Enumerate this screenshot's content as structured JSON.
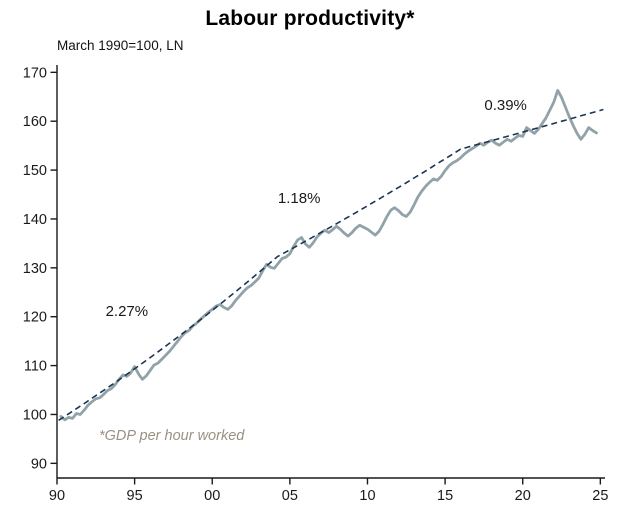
{
  "chart_data": {
    "type": "line",
    "title": "Labour productivity*",
    "subtitle": "March 1990=100, LN",
    "footnote": "*GDP per hour worked",
    "xlabel": "",
    "ylabel": "",
    "grid": false,
    "legend": false,
    "xlim": [
      1990,
      2025.3
    ],
    "ylim": [
      87,
      171.5
    ],
    "axis_color": "#1a1a1a",
    "x_ticks": [
      {
        "v": 1990,
        "label": "90"
      },
      {
        "v": 1995,
        "label": "95"
      },
      {
        "v": 2000,
        "label": "00"
      },
      {
        "v": 2005,
        "label": "05"
      },
      {
        "v": 2010,
        "label": "10"
      },
      {
        "v": 2015,
        "label": "15"
      },
      {
        "v": 2020,
        "label": "20"
      },
      {
        "v": 2025,
        "label": "25"
      }
    ],
    "y_ticks": [
      {
        "v": 90,
        "label": "90"
      },
      {
        "v": 100,
        "label": "100"
      },
      {
        "v": 110,
        "label": "110"
      },
      {
        "v": 120,
        "label": "120"
      },
      {
        "v": 130,
        "label": "130"
      },
      {
        "v": 140,
        "label": "140"
      },
      {
        "v": 150,
        "label": "150"
      },
      {
        "v": 160,
        "label": "160"
      },
      {
        "v": 170,
        "label": "170"
      }
    ],
    "series": [
      {
        "name": "Labour productivity (GDP per hour worked, index March 1990=100)",
        "color": "#91a3a8",
        "points": [
          [
            1990.25,
            99.6
          ],
          [
            1990.5,
            98.9
          ],
          [
            1990.75,
            99.4
          ],
          [
            1991,
            99.2
          ],
          [
            1991.25,
            100.2
          ],
          [
            1991.5,
            100.0
          ],
          [
            1991.75,
            100.9
          ],
          [
            1992,
            101.9
          ],
          [
            1992.25,
            102.6
          ],
          [
            1992.5,
            103.2
          ],
          [
            1992.75,
            103.4
          ],
          [
            1993,
            104.1
          ],
          [
            1993.25,
            104.9
          ],
          [
            1993.5,
            105.3
          ],
          [
            1993.75,
            106.1
          ],
          [
            1994,
            107.2
          ],
          [
            1994.25,
            108.1
          ],
          [
            1994.5,
            107.8
          ],
          [
            1994.75,
            108.5
          ],
          [
            1995,
            109.8
          ],
          [
            1995.25,
            108.3
          ],
          [
            1995.5,
            107.2
          ],
          [
            1995.75,
            107.9
          ],
          [
            1996,
            109.0
          ],
          [
            1996.25,
            110.1
          ],
          [
            1996.5,
            110.5
          ],
          [
            1996.75,
            111.3
          ],
          [
            1997,
            112.1
          ],
          [
            1997.25,
            112.9
          ],
          [
            1997.5,
            113.9
          ],
          [
            1997.75,
            114.9
          ],
          [
            1998,
            115.9
          ],
          [
            1998.25,
            116.7
          ],
          [
            1998.5,
            117.2
          ],
          [
            1998.75,
            118.1
          ],
          [
            1999,
            118.7
          ],
          [
            1999.25,
            119.5
          ],
          [
            1999.5,
            120.2
          ],
          [
            1999.75,
            120.9
          ],
          [
            2000,
            121.5
          ],
          [
            2000.25,
            122.2
          ],
          [
            2000.5,
            122.5
          ],
          [
            2000.75,
            121.9
          ],
          [
            2001,
            121.5
          ],
          [
            2001.25,
            122.2
          ],
          [
            2001.5,
            123.3
          ],
          [
            2001.75,
            124.2
          ],
          [
            2002,
            125.1
          ],
          [
            2002.25,
            125.9
          ],
          [
            2002.5,
            126.4
          ],
          [
            2002.75,
            127.1
          ],
          [
            2003,
            127.9
          ],
          [
            2003.25,
            129.4
          ],
          [
            2003.5,
            130.7
          ],
          [
            2003.75,
            130.1
          ],
          [
            2004,
            129.9
          ],
          [
            2004.25,
            130.9
          ],
          [
            2004.5,
            131.9
          ],
          [
            2004.75,
            132.2
          ],
          [
            2005,
            132.9
          ],
          [
            2005.25,
            134.4
          ],
          [
            2005.5,
            135.7
          ],
          [
            2005.75,
            136.2
          ],
          [
            2006,
            134.9
          ],
          [
            2006.25,
            134.2
          ],
          [
            2006.5,
            135.1
          ],
          [
            2006.75,
            136.3
          ],
          [
            2007,
            137.1
          ],
          [
            2007.25,
            137.7
          ],
          [
            2007.5,
            137.2
          ],
          [
            2007.75,
            137.8
          ],
          [
            2008,
            138.5
          ],
          [
            2008.25,
            137.9
          ],
          [
            2008.5,
            137.1
          ],
          [
            2008.75,
            136.5
          ],
          [
            2009,
            137.2
          ],
          [
            2009.25,
            138.1
          ],
          [
            2009.5,
            138.7
          ],
          [
            2009.75,
            138.3
          ],
          [
            2010,
            137.9
          ],
          [
            2010.25,
            137.3
          ],
          [
            2010.5,
            136.7
          ],
          [
            2010.75,
            137.5
          ],
          [
            2011,
            138.9
          ],
          [
            2011.25,
            140.5
          ],
          [
            2011.5,
            141.8
          ],
          [
            2011.75,
            142.3
          ],
          [
            2012,
            141.7
          ],
          [
            2012.25,
            140.9
          ],
          [
            2012.5,
            140.5
          ],
          [
            2012.75,
            141.4
          ],
          [
            2013,
            142.9
          ],
          [
            2013.25,
            144.5
          ],
          [
            2013.5,
            145.7
          ],
          [
            2013.75,
            146.7
          ],
          [
            2014,
            147.5
          ],
          [
            2014.25,
            148.2
          ],
          [
            2014.5,
            147.9
          ],
          [
            2014.75,
            148.7
          ],
          [
            2015,
            149.9
          ],
          [
            2015.25,
            150.9
          ],
          [
            2015.5,
            151.5
          ],
          [
            2015.75,
            151.9
          ],
          [
            2016,
            152.5
          ],
          [
            2016.25,
            153.3
          ],
          [
            2016.5,
            153.9
          ],
          [
            2016.75,
            154.4
          ],
          [
            2017,
            154.9
          ],
          [
            2017.25,
            155.5
          ],
          [
            2017.5,
            155.1
          ],
          [
            2017.75,
            155.7
          ],
          [
            2018,
            156.1
          ],
          [
            2018.25,
            155.5
          ],
          [
            2018.5,
            155.1
          ],
          [
            2018.75,
            155.7
          ],
          [
            2019,
            156.3
          ],
          [
            2019.25,
            155.9
          ],
          [
            2019.5,
            156.5
          ],
          [
            2019.75,
            157.1
          ],
          [
            2020,
            156.9
          ],
          [
            2020.25,
            158.7
          ],
          [
            2020.5,
            158.1
          ],
          [
            2020.75,
            157.5
          ],
          [
            2021,
            158.3
          ],
          [
            2021.25,
            159.5
          ],
          [
            2021.5,
            160.7
          ],
          [
            2021.75,
            162.3
          ],
          [
            2022,
            163.9
          ],
          [
            2022.25,
            166.3
          ],
          [
            2022.5,
            164.9
          ],
          [
            2022.75,
            162.9
          ],
          [
            2023,
            160.9
          ],
          [
            2023.25,
            159.1
          ],
          [
            2023.5,
            157.5
          ],
          [
            2023.75,
            156.3
          ],
          [
            2024,
            157.3
          ],
          [
            2024.25,
            158.7
          ],
          [
            2024.5,
            158.1
          ],
          [
            2024.75,
            157.6
          ]
        ]
      }
    ],
    "trend": {
      "name": "Piecewise trend (dashed)",
      "color": "#1b3556",
      "style": "dashed",
      "breakpoints": [
        [
          1990.1,
          98.8
        ],
        [
          2004.2,
          132.3
        ],
        [
          2016.0,
          154.3
        ],
        [
          2025.2,
          162.4
        ]
      ]
    },
    "annotations": [
      {
        "label": "2.27%",
        "x": 1994.5,
        "y": 121.2
      },
      {
        "label": "1.18%",
        "x": 2005.6,
        "y": 144.3
      },
      {
        "label": "0.39%",
        "x": 2018.9,
        "y": 163.3
      }
    ]
  }
}
